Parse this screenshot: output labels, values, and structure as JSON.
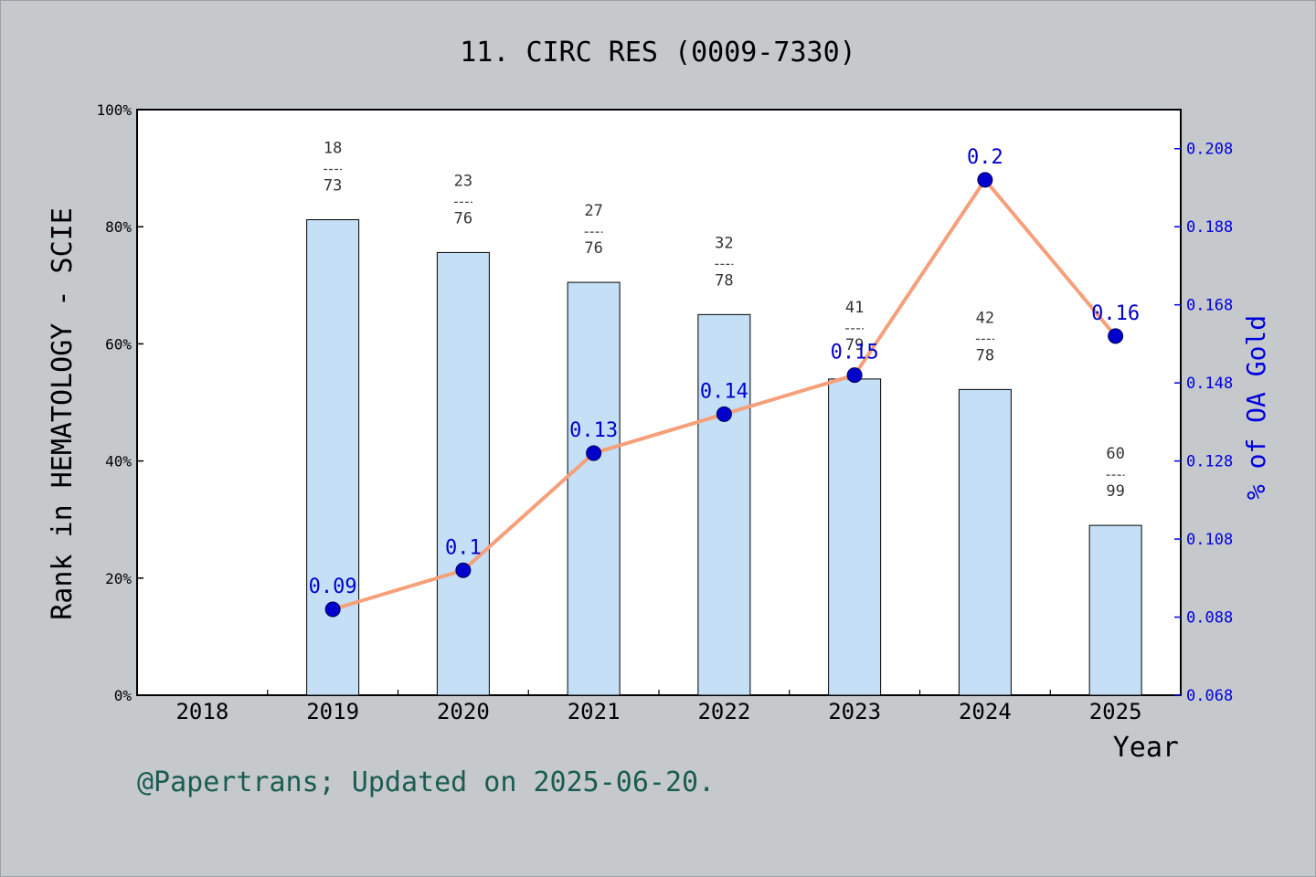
{
  "chart_data": {
    "type": "bar",
    "title": "11. CIRC RES (0009-7330)",
    "xlabel": "Year",
    "ylabel": "Rank in HEMATOLOGY - SCIE",
    "y2label": "% of OA Gold",
    "footer": "@Papertrans; Updated on 2025-06-20.",
    "categories": [
      "2018",
      "2019",
      "2020",
      "2021",
      "2022",
      "2023",
      "2024",
      "2025"
    ],
    "ylim": [
      0,
      100
    ],
    "y_ticks": [
      "0%",
      "20%",
      "40%",
      "60%",
      "80%",
      "100%"
    ],
    "y2lim": [
      0.068,
      0.218
    ],
    "y2_ticks": [
      "0.068",
      "0.088",
      "0.108",
      "0.128",
      "0.148",
      "0.168",
      "0.188",
      "0.208"
    ],
    "series": [
      {
        "kind": "bar",
        "values": [
          null,
          81.2,
          75.6,
          70.5,
          65.0,
          54.0,
          52.2,
          29.0
        ],
        "labels": [
          null,
          {
            "num": "18",
            "den": "73"
          },
          {
            "num": "23",
            "den": "76"
          },
          {
            "num": "27",
            "den": "76"
          },
          {
            "num": "32",
            "den": "78"
          },
          {
            "num": "41",
            "den": "79"
          },
          {
            "num": "42",
            "den": "78"
          },
          {
            "num": "60",
            "den": "99"
          }
        ],
        "color": "#c5dff7"
      },
      {
        "kind": "line",
        "axis": "right",
        "values": [
          null,
          0.09,
          0.1,
          0.13,
          0.14,
          0.15,
          0.2,
          0.16
        ],
        "labels": [
          null,
          "0.09",
          "0.1",
          "0.13",
          "0.14",
          "0.15",
          "0.2",
          "0.16"
        ],
        "color": "#f5a07a",
        "marker_color": "#0000cc"
      }
    ],
    "grid": false
  }
}
